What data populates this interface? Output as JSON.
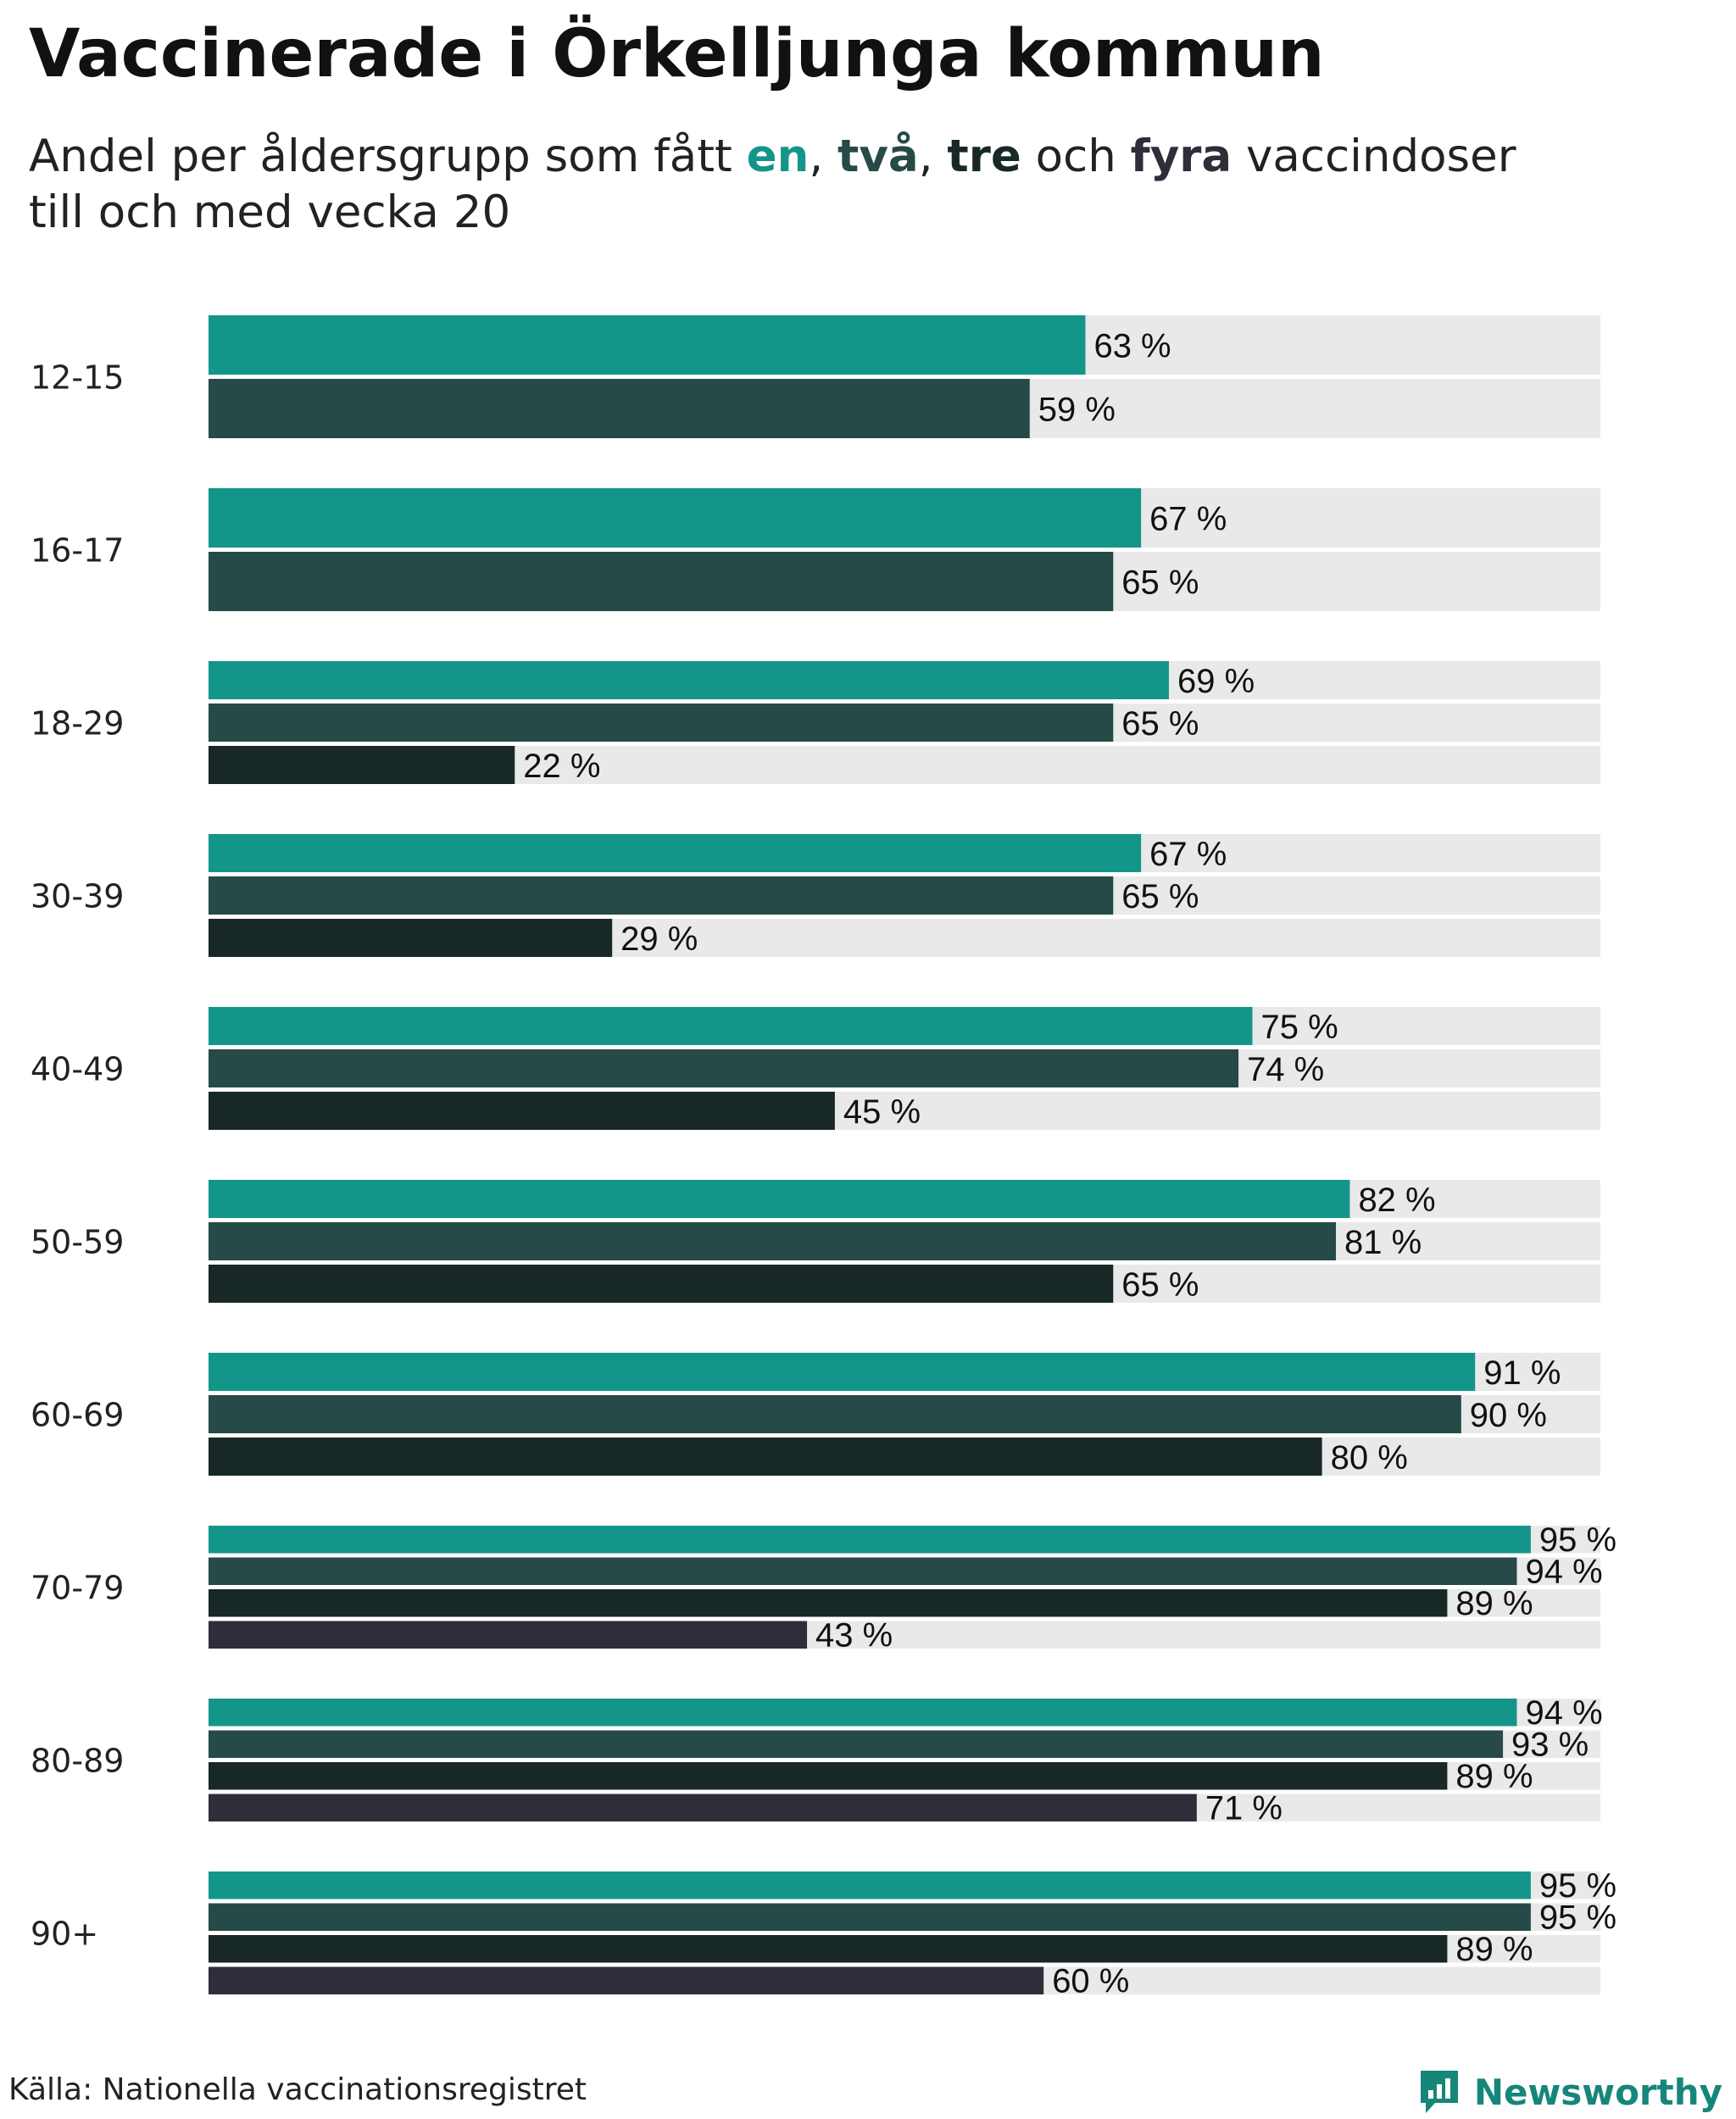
{
  "title": "Vaccinerade i Örkelljunga kommun",
  "subtitle": {
    "before": "Andel per åldersgrupp som fått ",
    "dose1": "en",
    "sep1": ", ",
    "dose2": "två",
    "sep2": ", ",
    "dose3": "tre",
    "and": " och ",
    "dose4": "fyra",
    "line1_end": " vaccindoser",
    "line2": "till och med vecka 20"
  },
  "source": "Källa: Nationella vaccinationsregistret",
  "brand": "Newsworthy",
  "colors": {
    "dose1": "#13958a",
    "dose2": "#264a47",
    "dose3": "#182826",
    "dose4": "#2e2e3a",
    "track": "#e9e9e9",
    "brand": "#16867a"
  },
  "chart_data": {
    "type": "bar",
    "orientation": "horizontal",
    "title": "Vaccinerade i Örkelljunga kommun",
    "subtitle": "Andel per åldersgrupp som fått en, två, tre och fyra vaccindoser till och med vecka 20",
    "xlim": [
      0,
      100
    ],
    "unit": "%",
    "categories": [
      "12-15",
      "16-17",
      "18-29",
      "30-39",
      "40-49",
      "50-59",
      "60-69",
      "70-79",
      "80-89",
      "90+"
    ],
    "series": [
      {
        "name": "en",
        "values": [
          63,
          67,
          69,
          67,
          75,
          82,
          91,
          95,
          94,
          95
        ]
      },
      {
        "name": "två",
        "values": [
          59,
          65,
          65,
          65,
          74,
          81,
          90,
          94,
          93,
          95
        ]
      },
      {
        "name": "tre",
        "values": [
          null,
          null,
          22,
          29,
          45,
          65,
          80,
          89,
          89,
          89
        ]
      },
      {
        "name": "fyra",
        "values": [
          null,
          null,
          null,
          null,
          null,
          null,
          null,
          43,
          71,
          60
        ]
      }
    ],
    "labels": [
      [
        "63 %",
        "59 %"
      ],
      [
        "67 %",
        "65 %"
      ],
      [
        "69 %",
        "65 %",
        "22 %"
      ],
      [
        "67 %",
        "65 %",
        "29 %"
      ],
      [
        "75 %",
        "74 %",
        "45 %"
      ],
      [
        "82 %",
        "81 %",
        "65 %"
      ],
      [
        "91 %",
        "90 %",
        "80 %"
      ],
      [
        "95 %",
        "94 %",
        "89 %",
        "43 %"
      ],
      [
        "94 %",
        "93 %",
        "89 %",
        "71 %"
      ],
      [
        "95 %",
        "95 %",
        "89 %",
        "60 %"
      ]
    ]
  }
}
